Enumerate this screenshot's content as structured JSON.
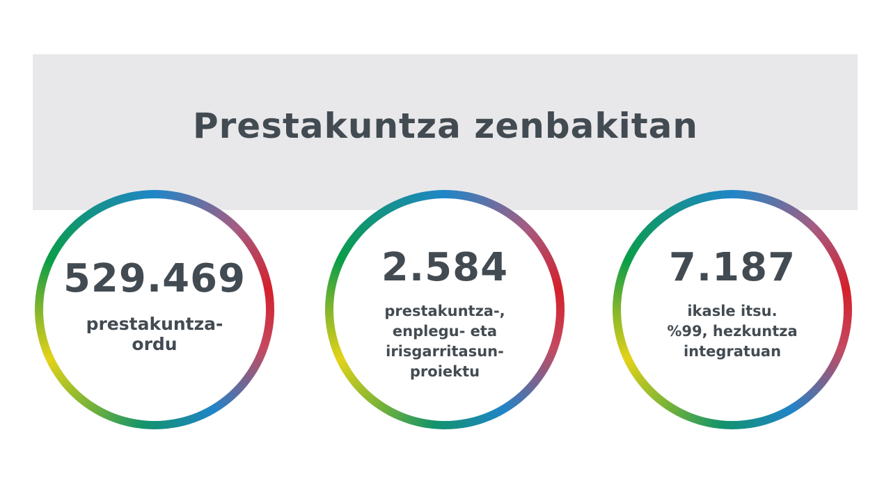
{
  "banner": {
    "title": "Prestakuntza zenbakitan"
  },
  "stats": [
    {
      "value": "529.469",
      "label_lines": [
        "prestakuntza-",
        "ordu"
      ]
    },
    {
      "value": "2.584",
      "label_lines": [
        "prestakuntza-,",
        "enplegu- eta",
        "irisgarritasun-",
        "proiektu"
      ]
    },
    {
      "value": "7.187",
      "label_lines": [
        "ikasle itsu.",
        "%99, hezkuntza",
        "integratuan"
      ]
    }
  ],
  "colors": {
    "text": "#434b52",
    "banner_bg": "#e8e8ea",
    "ring_blue": "#1f86c8",
    "ring_red": "#d4202b",
    "ring_green": "#0a9d48",
    "ring_yellow": "#e3d219"
  }
}
